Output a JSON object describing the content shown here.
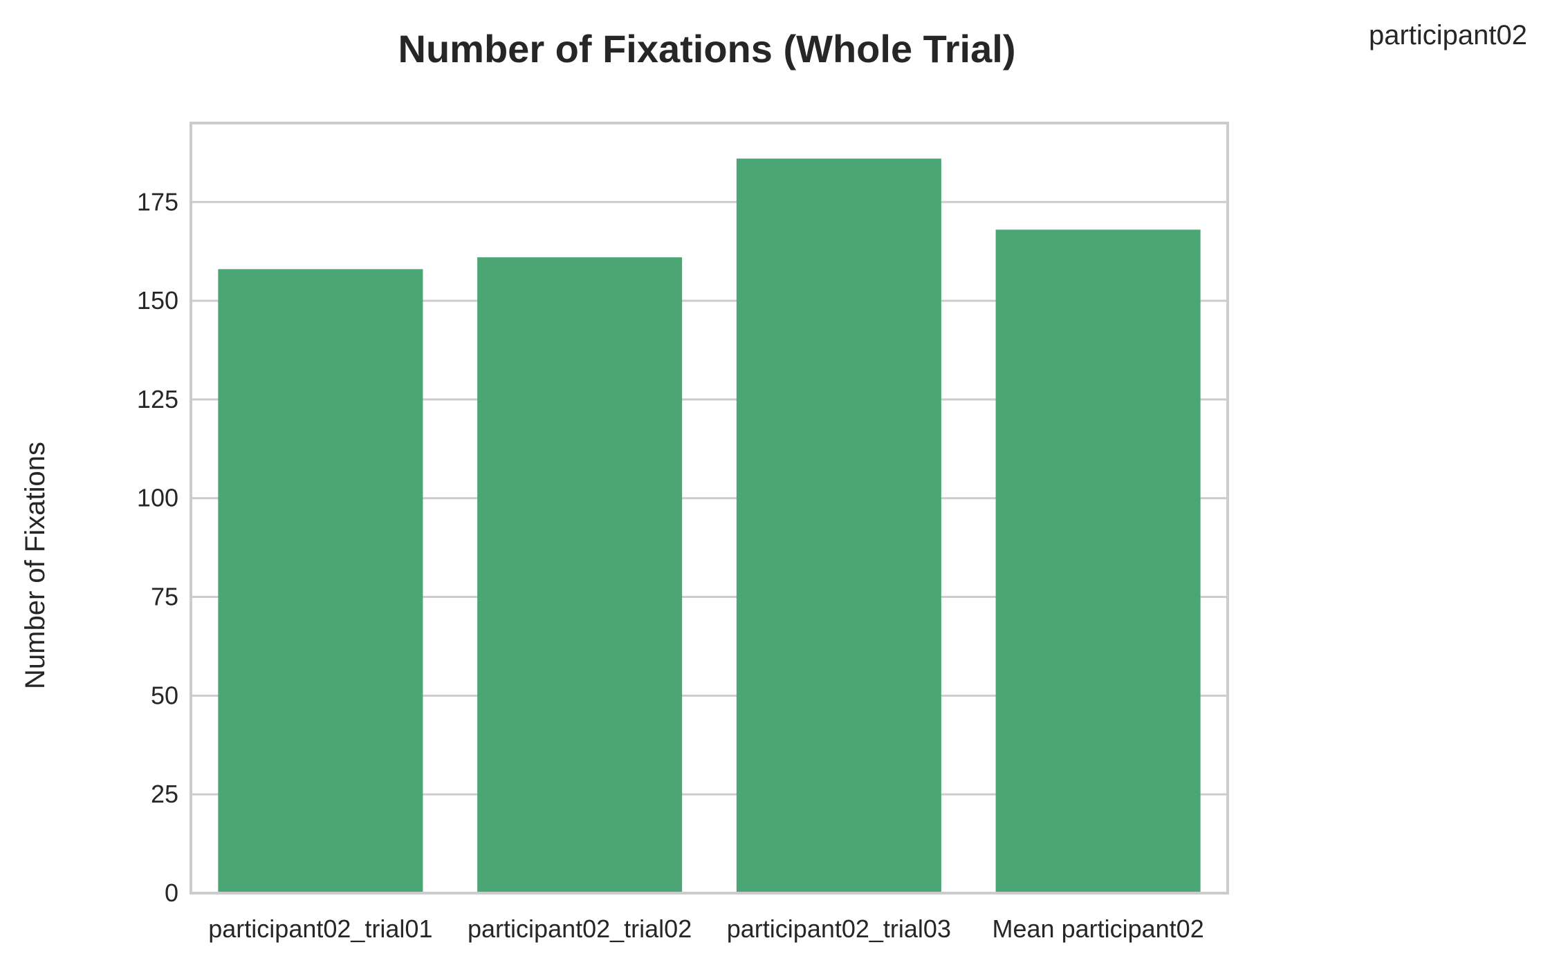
{
  "chart_data": {
    "type": "bar",
    "title": "Number of Fixations (Whole Trial)",
    "legend_label": "participant02",
    "legend_position": "outside top-right",
    "xlabel": "",
    "ylabel": "Number of Fixations",
    "categories": [
      "participant02_trial01",
      "participant02_trial02",
      "participant02_trial03",
      "Mean participant02"
    ],
    "values": [
      158,
      161,
      186,
      168
    ],
    "ylim": [
      0,
      195
    ],
    "yticks": [
      0,
      25,
      50,
      75,
      100,
      125,
      150,
      175
    ],
    "grid": "horizontal",
    "bar_color": "#4ca574",
    "grid_color": "#cccccc"
  }
}
